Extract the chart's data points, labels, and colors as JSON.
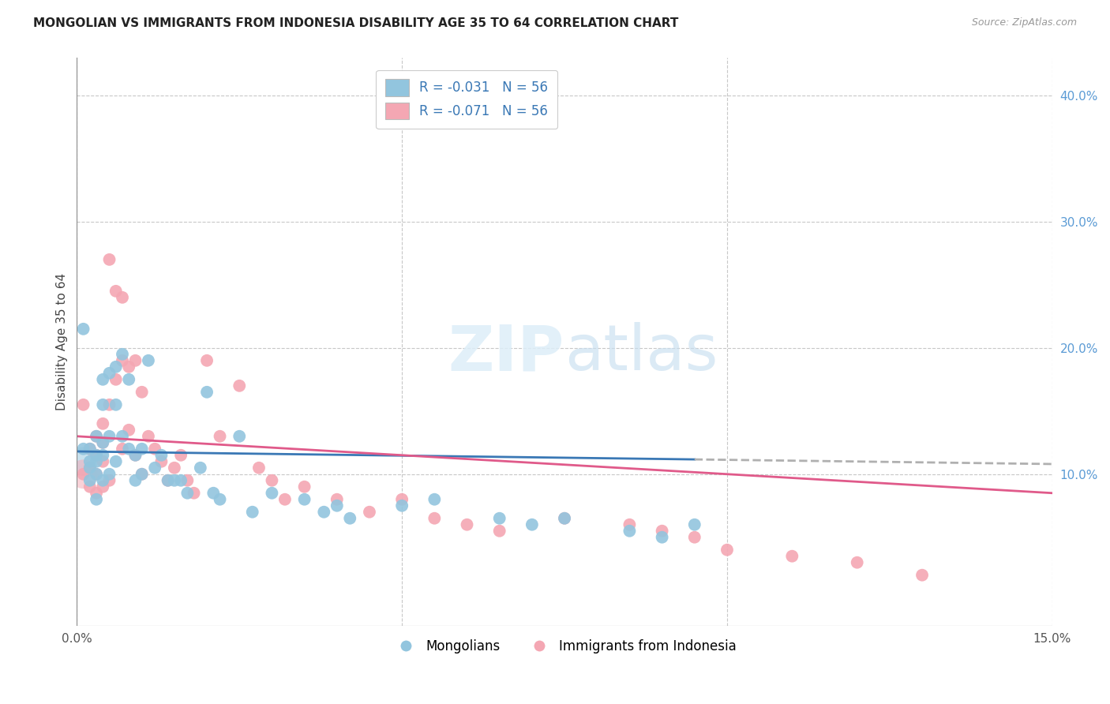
{
  "title": "MONGOLIAN VS IMMIGRANTS FROM INDONESIA DISABILITY AGE 35 TO 64 CORRELATION CHART",
  "source": "Source: ZipAtlas.com",
  "ylabel": "Disability Age 35 to 64",
  "xlim": [
    0.0,
    0.15
  ],
  "ylim": [
    -0.02,
    0.43
  ],
  "yticks_right": [
    0.1,
    0.2,
    0.3,
    0.4
  ],
  "yticklabels_right": [
    "10.0%",
    "20.0%",
    "30.0%",
    "40.0%"
  ],
  "grid_color": "#c8c8c8",
  "background_color": "#ffffff",
  "legend_r_blue": "R = -0.031",
  "legend_n_blue": "N = 56",
  "legend_r_pink": "R = -0.071",
  "legend_n_pink": "N = 56",
  "blue_color": "#92c5de",
  "pink_color": "#f4a7b3",
  "blue_line_color": "#3a78b5",
  "pink_line_color": "#e05a8a",
  "trend_line_dashed_color": "#b0b0b0",
  "mongolians_x": [
    0.001,
    0.001,
    0.002,
    0.002,
    0.002,
    0.002,
    0.003,
    0.003,
    0.003,
    0.003,
    0.003,
    0.004,
    0.004,
    0.004,
    0.004,
    0.004,
    0.005,
    0.005,
    0.005,
    0.006,
    0.006,
    0.006,
    0.007,
    0.007,
    0.008,
    0.008,
    0.009,
    0.009,
    0.01,
    0.01,
    0.011,
    0.012,
    0.013,
    0.014,
    0.015,
    0.016,
    0.017,
    0.019,
    0.02,
    0.021,
    0.022,
    0.025,
    0.027,
    0.03,
    0.035,
    0.038,
    0.04,
    0.042,
    0.05,
    0.055,
    0.065,
    0.07,
    0.075,
    0.085,
    0.09,
    0.095
  ],
  "mongolians_y": [
    0.215,
    0.12,
    0.11,
    0.105,
    0.12,
    0.095,
    0.13,
    0.115,
    0.11,
    0.1,
    0.08,
    0.175,
    0.155,
    0.125,
    0.115,
    0.095,
    0.18,
    0.13,
    0.1,
    0.185,
    0.155,
    0.11,
    0.195,
    0.13,
    0.175,
    0.12,
    0.115,
    0.095,
    0.12,
    0.1,
    0.19,
    0.105,
    0.115,
    0.095,
    0.095,
    0.095,
    0.085,
    0.105,
    0.165,
    0.085,
    0.08,
    0.13,
    0.07,
    0.085,
    0.08,
    0.07,
    0.075,
    0.065,
    0.075,
    0.08,
    0.065,
    0.06,
    0.065,
    0.055,
    0.05,
    0.06
  ],
  "indonesia_x": [
    0.001,
    0.001,
    0.002,
    0.002,
    0.002,
    0.003,
    0.003,
    0.003,
    0.003,
    0.004,
    0.004,
    0.004,
    0.004,
    0.005,
    0.005,
    0.005,
    0.006,
    0.006,
    0.007,
    0.007,
    0.007,
    0.008,
    0.008,
    0.009,
    0.009,
    0.01,
    0.01,
    0.011,
    0.012,
    0.013,
    0.014,
    0.015,
    0.016,
    0.017,
    0.018,
    0.02,
    0.022,
    0.025,
    0.028,
    0.03,
    0.032,
    0.035,
    0.04,
    0.045,
    0.05,
    0.055,
    0.06,
    0.065,
    0.075,
    0.085,
    0.09,
    0.095,
    0.1,
    0.11,
    0.12,
    0.13
  ],
  "indonesia_y": [
    0.155,
    0.1,
    0.12,
    0.105,
    0.09,
    0.13,
    0.115,
    0.1,
    0.085,
    0.14,
    0.125,
    0.11,
    0.09,
    0.27,
    0.155,
    0.095,
    0.245,
    0.175,
    0.24,
    0.19,
    0.12,
    0.185,
    0.135,
    0.19,
    0.115,
    0.165,
    0.1,
    0.13,
    0.12,
    0.11,
    0.095,
    0.105,
    0.115,
    0.095,
    0.085,
    0.19,
    0.13,
    0.17,
    0.105,
    0.095,
    0.08,
    0.09,
    0.08,
    0.07,
    0.08,
    0.065,
    0.06,
    0.055,
    0.065,
    0.06,
    0.055,
    0.05,
    0.04,
    0.035,
    0.03,
    0.02
  ],
  "blue_trend_x_solid_end": 0.095,
  "blue_trend_start_y": 0.118,
  "blue_trend_end_y": 0.108,
  "pink_trend_start_y": 0.13,
  "pink_trend_end_y": 0.085
}
